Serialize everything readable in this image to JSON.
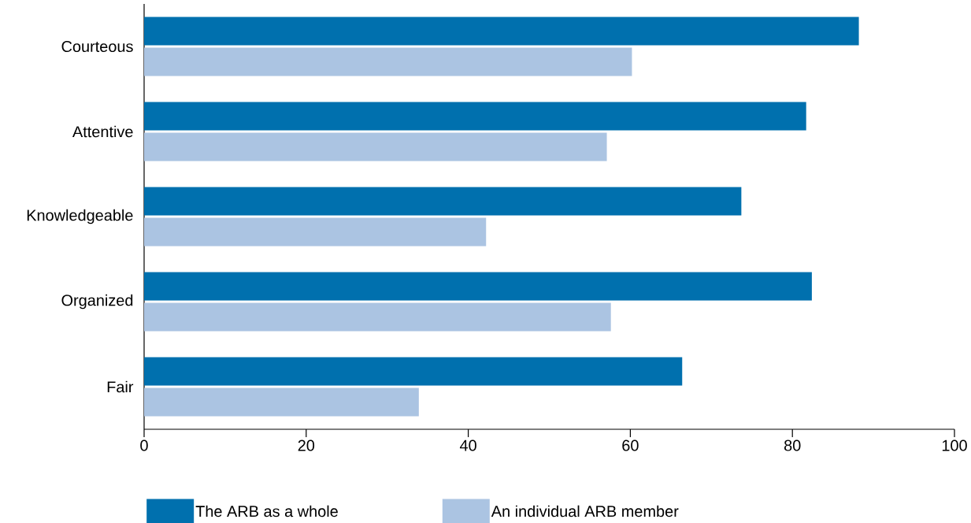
{
  "chart_data": {
    "type": "bar",
    "orientation": "horizontal",
    "categories": [
      "Courteous",
      "Attentive",
      "Knowledgeable",
      "Organized",
      "Fair"
    ],
    "series": [
      {
        "name": "The ARB as a whole",
        "color": "#0070ae",
        "values": [
          88.2,
          81.7,
          73.7,
          82.4,
          66.4
        ]
      },
      {
        "name": "An individual ARB member",
        "color": "#abc4e2",
        "values": [
          60.2,
          57.1,
          42.2,
          57.6,
          33.9
        ]
      }
    ],
    "xlim": [
      0,
      100
    ],
    "xticks": [
      0,
      20,
      40,
      60,
      80,
      100
    ],
    "grid": false,
    "legend": "bottom"
  }
}
